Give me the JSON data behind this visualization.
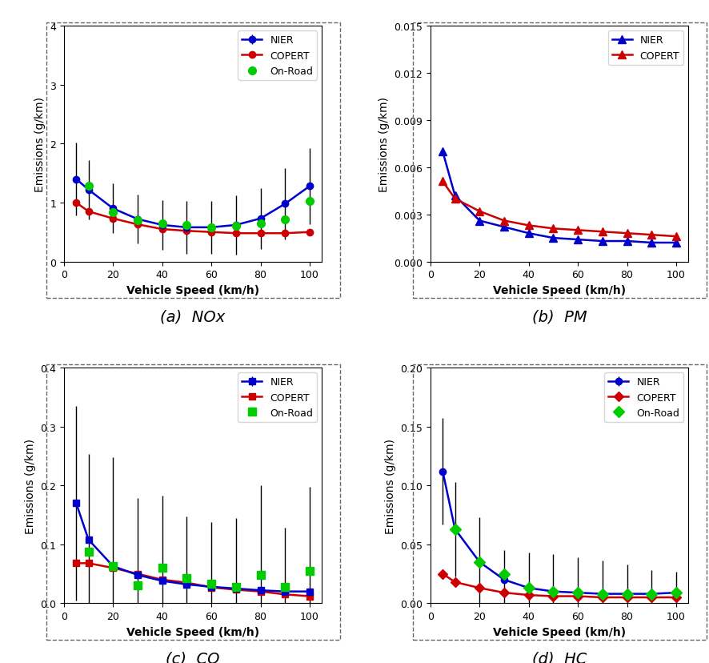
{
  "speed": [
    5,
    10,
    20,
    30,
    40,
    50,
    60,
    70,
    80,
    90,
    100
  ],
  "nox": {
    "nier": [
      1.4,
      1.22,
      0.9,
      0.72,
      0.62,
      0.58,
      0.58,
      0.62,
      0.73,
      0.98,
      1.28
    ],
    "copert": [
      1.0,
      0.85,
      0.73,
      0.63,
      0.55,
      0.52,
      0.5,
      0.48,
      0.48,
      0.48,
      0.5
    ],
    "onroad": [
      1.28,
      0.83,
      0.7,
      0.65,
      0.62,
      0.58,
      0.6,
      0.64,
      0.72,
      1.02,
      1.1
    ],
    "nier_err": [
      0.62,
      0.5,
      0.42,
      0.42,
      0.42,
      0.45,
      0.45,
      0.5,
      0.52,
      0.6,
      0.65
    ],
    "speed_onroad": [
      10,
      20,
      30,
      40,
      50,
      60,
      70,
      80,
      90,
      100
    ],
    "onroad10": [
      1.28,
      0.83,
      0.7,
      0.65,
      0.62,
      0.58,
      0.6,
      0.64,
      0.72,
      1.02
    ]
  },
  "pm": {
    "nier": [
      0.007,
      0.0042,
      0.0026,
      0.0022,
      0.0018,
      0.0015,
      0.0014,
      0.0013,
      0.0013,
      0.0012,
      0.0012
    ],
    "copert": [
      0.0051,
      0.004,
      0.0032,
      0.0026,
      0.0023,
      0.0021,
      0.002,
      0.0019,
      0.0018,
      0.0017,
      0.0016
    ]
  },
  "co": {
    "nier": [
      0.17,
      0.108,
      0.063,
      0.048,
      0.038,
      0.032,
      0.028,
      0.025,
      0.022,
      0.02,
      0.02
    ],
    "copert": [
      0.068,
      0.068,
      0.06,
      0.05,
      0.04,
      0.035,
      0.027,
      0.023,
      0.02,
      0.015,
      0.012
    ],
    "onroad": [
      0.088,
      0.063,
      0.03,
      0.06,
      0.042,
      0.033,
      0.028,
      0.048,
      0.028,
      0.055
    ],
    "nier_err": [
      0.165,
      0.145,
      0.185,
      0.13,
      0.145,
      0.115,
      0.11,
      0.12,
      0.178,
      0.108,
      0.178
    ],
    "speed_onroad": [
      10,
      20,
      30,
      40,
      50,
      60,
      70,
      80,
      90,
      100
    ]
  },
  "hc": {
    "nier": [
      0.112,
      0.063,
      0.035,
      0.02,
      0.013,
      0.01,
      0.009,
      0.008,
      0.008,
      0.008,
      0.009
    ],
    "copert": [
      0.025,
      0.018,
      0.013,
      0.009,
      0.007,
      0.006,
      0.006,
      0.005,
      0.005,
      0.005,
      0.005
    ],
    "onroad": [
      0.063,
      0.035,
      0.025,
      0.013,
      0.01,
      0.009,
      0.008,
      0.008,
      0.008,
      0.009
    ],
    "nier_err": [
      0.045,
      0.04,
      0.038,
      0.025,
      0.03,
      0.032,
      0.03,
      0.028,
      0.025,
      0.02,
      0.018
    ],
    "speed_onroad": [
      10,
      20,
      30,
      40,
      50,
      60,
      70,
      80,
      90,
      100
    ]
  },
  "colors": {
    "blue": "#0000CD",
    "red": "#CC0000",
    "green": "#00CC00"
  },
  "panel_labels": [
    "(a)  NOx",
    "(b)  PM",
    "(c)  CO",
    "(d)  HC"
  ],
  "ylabel": "Emissions (g/km)",
  "xlabel": "Vehicle Speed (km/h)"
}
